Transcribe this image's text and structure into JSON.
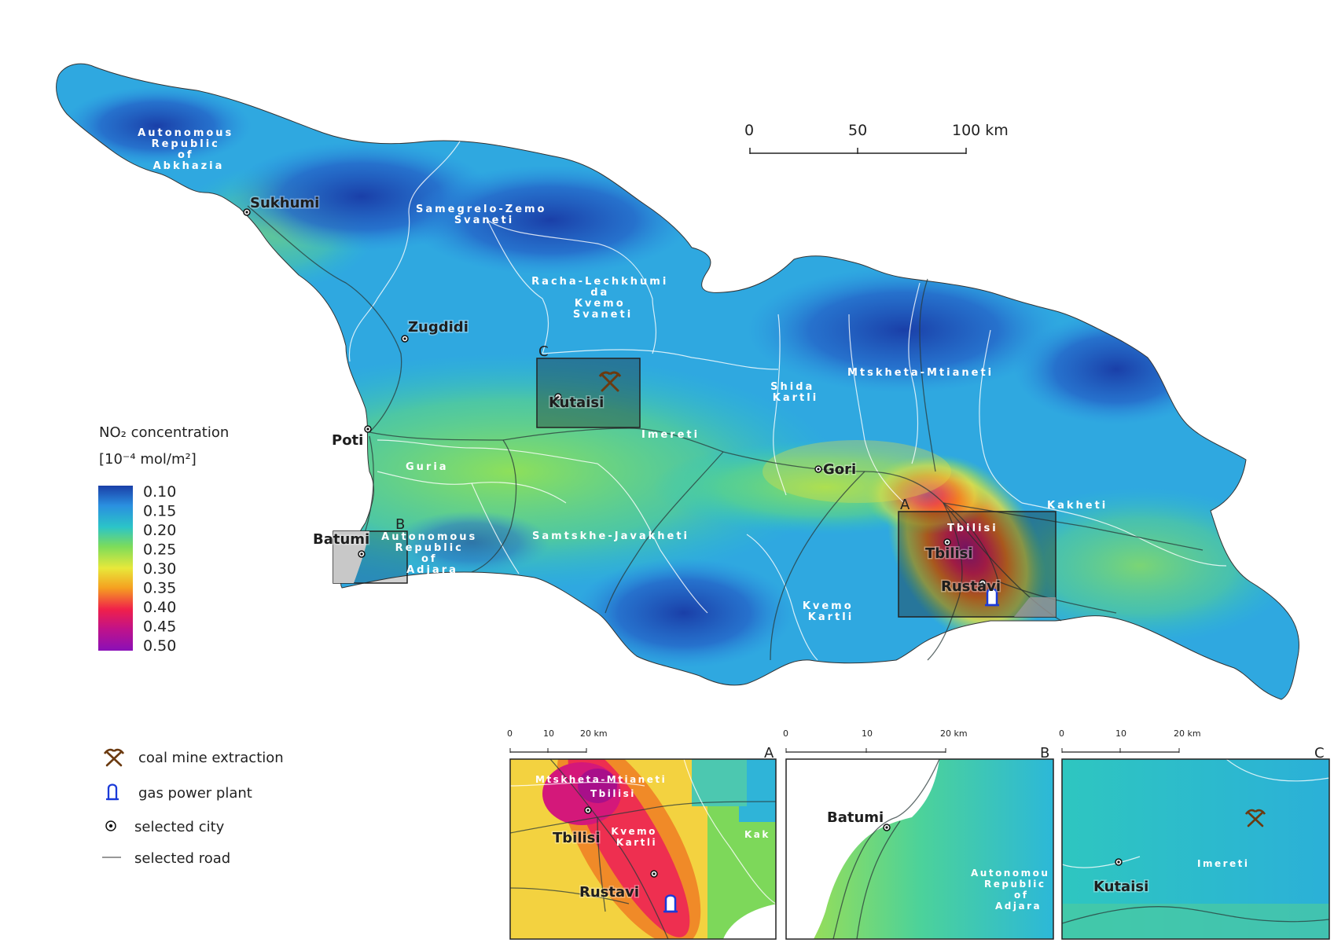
{
  "legend": {
    "title_line1": "NO₂ concentration",
    "title_line2": "[10⁻⁴ mol/m²]",
    "ticks": [
      "0.10",
      "0.15",
      "0.20",
      "0.25",
      "0.30",
      "0.35",
      "0.40",
      "0.45",
      "0.50"
    ],
    "colors": [
      "#1a3fa8",
      "#2a8fe0",
      "#2bc4c8",
      "#7ddc5a",
      "#e8e83a",
      "#f5a020",
      "#f0204a",
      "#c0128a",
      "#8a10b8"
    ]
  },
  "scale_bar": {
    "labels": [
      "0",
      "50",
      "100 km"
    ]
  },
  "regions": {
    "abkhazia": [
      "Autonomous",
      "Republic",
      "of",
      "Abkhazia"
    ],
    "samegrelo": [
      "Samegrelo-Zemo",
      "Svaneti"
    ],
    "racha": [
      "Racha-Lechkhumi",
      "da",
      "Kvemo",
      "Svaneti"
    ],
    "mtskheta": "Mtskheta-Mtianeti",
    "shida": [
      "Shida",
      "Kartli"
    ],
    "imereti": "Imereti",
    "guria": "Guria",
    "adjara": [
      "Autonomous",
      "Republic",
      "of",
      "Adjara"
    ],
    "samtskhe": "Samtskhe-Javakheti",
    "kvemo": [
      "Kvemo",
      "Kartli"
    ],
    "kakheti": "Kakheti",
    "tbilisi_region": "Tbilisi"
  },
  "cities": {
    "sukhumi": "Sukhumi",
    "zugdidi": "Zugdidi",
    "poti": "Poti",
    "kutaisi": "Kutaisi",
    "batumi": "Batumi",
    "gori": "Gori",
    "tbilisi": "Tbilisi",
    "rustavi": "Rustavi"
  },
  "boxes": {
    "a": "A",
    "b": "B",
    "c": "C"
  },
  "symbol_legend": {
    "coal": "coal mine extraction",
    "gas": "gas power plant",
    "city": "selected city",
    "road": "selected road"
  },
  "insets": {
    "a": {
      "letter": "A",
      "scale": [
        "0",
        "10",
        "20 km"
      ],
      "regions": {
        "mtskheta": "Mtskheta-Mtianeti",
        "tbilisi": "Tbilisi",
        "kvemo": [
          "Kvemo",
          "Kartli"
        ],
        "kakheti": "Kak"
      },
      "cities": {
        "tbilisi": "Tbilisi",
        "rustavi": "Rustavi"
      }
    },
    "b": {
      "letter": "B",
      "scale": [
        "0",
        "10",
        "20 km"
      ],
      "regions": {
        "adjara": [
          "Autonomou",
          "Republic",
          "of",
          "Adjara"
        ]
      },
      "cities": {
        "batumi": "Batumi"
      }
    },
    "c": {
      "letter": "C",
      "scale": [
        "0",
        "10",
        "20 km"
      ],
      "regions": {
        "imereti": "Imereti"
      },
      "cities": {
        "kutaisi": "Kutaisi"
      }
    }
  }
}
